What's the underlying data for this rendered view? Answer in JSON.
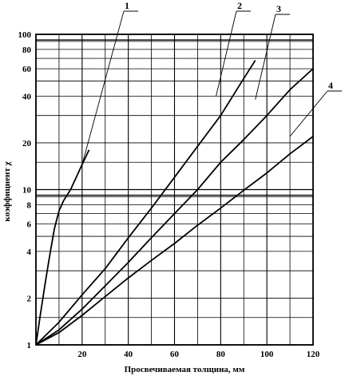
{
  "chart_data": {
    "type": "line",
    "xlabel": "Просвечиваемая толщина, мм",
    "ylabel": "коэффициент χ",
    "xlim": [
      0,
      120
    ],
    "ylim": [
      1,
      100
    ],
    "yscale": "log",
    "grid": true,
    "x_ticks": [
      20,
      40,
      60,
      80,
      100,
      120
    ],
    "y_ticks": [
      1,
      2,
      4,
      6,
      8,
      10,
      20,
      40,
      60,
      80,
      100
    ],
    "series": [
      {
        "name": "1",
        "points": [
          [
            0,
            1
          ],
          [
            2,
            1.6
          ],
          [
            4,
            2.5
          ],
          [
            6,
            3.8
          ],
          [
            8,
            5.6
          ],
          [
            10,
            7.3
          ],
          [
            12,
            8.5
          ],
          [
            15,
            10
          ],
          [
            18,
            12.5
          ],
          [
            20,
            14.5
          ],
          [
            23,
            18
          ]
        ]
      },
      {
        "name": "2",
        "points": [
          [
            0,
            1
          ],
          [
            10,
            1.4
          ],
          [
            20,
            2.1
          ],
          [
            30,
            3.1
          ],
          [
            40,
            4.9
          ],
          [
            50,
            7.6
          ],
          [
            60,
            12
          ],
          [
            70,
            19
          ],
          [
            80,
            30
          ],
          [
            90,
            52
          ],
          [
            95,
            68
          ]
        ]
      },
      {
        "name": "3",
        "points": [
          [
            0,
            1
          ],
          [
            10,
            1.25
          ],
          [
            20,
            1.7
          ],
          [
            30,
            2.4
          ],
          [
            40,
            3.4
          ],
          [
            50,
            4.9
          ],
          [
            60,
            7.0
          ],
          [
            70,
            10
          ],
          [
            80,
            15
          ],
          [
            90,
            21
          ],
          [
            100,
            30
          ],
          [
            110,
            44
          ],
          [
            120,
            60
          ]
        ]
      },
      {
        "name": "4",
        "points": [
          [
            0,
            1
          ],
          [
            10,
            1.2
          ],
          [
            20,
            1.55
          ],
          [
            30,
            2.05
          ],
          [
            40,
            2.7
          ],
          [
            50,
            3.5
          ],
          [
            60,
            4.5
          ],
          [
            70,
            5.9
          ],
          [
            80,
            7.6
          ],
          [
            90,
            9.9
          ],
          [
            100,
            12.8
          ],
          [
            110,
            17
          ],
          [
            120,
            22
          ]
        ]
      }
    ]
  }
}
